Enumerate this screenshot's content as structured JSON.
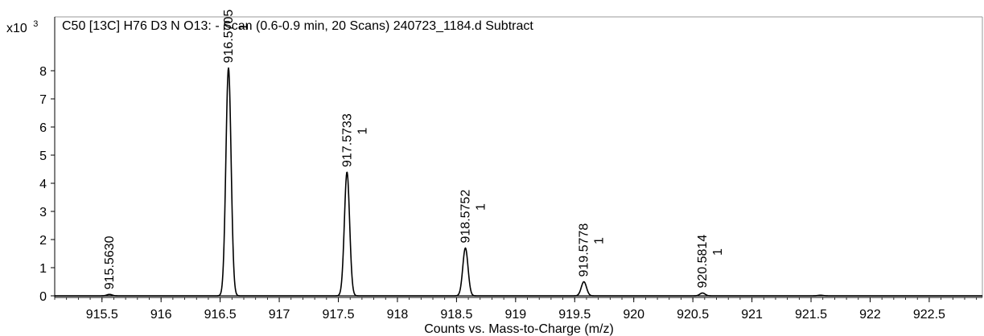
{
  "chart_data": {
    "type": "line",
    "title": "C50 [13C] H76 D3 N O13: - Scan (0.6-0.9 min, 20 Scans) 240723_1184.d  Subtract",
    "xlabel": "Counts vs. Mass-to-Charge (m/z)",
    "y_multiplier": {
      "base": "x10",
      "exponent": "3"
    },
    "xlim": [
      915.1,
      922.95
    ],
    "ylim": [
      0,
      8.7
    ],
    "grid": false,
    "legend": "none",
    "x_ticks": [
      "915.5",
      "916",
      "916.5",
      "917",
      "917.5",
      "918",
      "918.5",
      "919",
      "919.5",
      "920",
      "920.5",
      "921",
      "921.5",
      "922",
      "922.5"
    ],
    "y_ticks": [
      "0",
      "1",
      "2",
      "3",
      "4",
      "5",
      "6",
      "7",
      "8"
    ],
    "peak_width": 0.022,
    "peaks": [
      {
        "x": 915.563,
        "y": 0.05,
        "label": "915.5630",
        "charge": ""
      },
      {
        "x": 916.5705,
        "y": 8.1,
        "label": "916.5705",
        "charge": "1"
      },
      {
        "x": 917.5733,
        "y": 4.4,
        "label": "917.5733",
        "charge": "1"
      },
      {
        "x": 918.5752,
        "y": 1.7,
        "label": "918.5752",
        "charge": "1"
      },
      {
        "x": 919.5778,
        "y": 0.5,
        "label": "919.5778",
        "charge": "1"
      },
      {
        "x": 920.5814,
        "y": 0.1,
        "label": "920.5814",
        "charge": "1"
      },
      {
        "x": 921.58,
        "y": 0.02,
        "label": "",
        "charge": ""
      }
    ]
  }
}
